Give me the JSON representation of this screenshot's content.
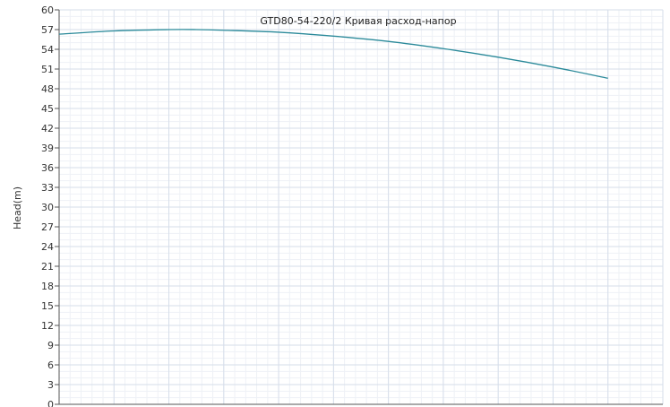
{
  "chart_data": {
    "type": "line",
    "title": "GTD80-54-220/2 Кривая расход-напор",
    "xlabel": "",
    "ylabel": "Head(m)",
    "ylim": [
      0,
      60
    ],
    "yticks": [
      0,
      3,
      6,
      9,
      12,
      15,
      18,
      21,
      24,
      27,
      30,
      33,
      36,
      39,
      42,
      45,
      48,
      51,
      54,
      57,
      60
    ],
    "xlim": [
      0,
      11
    ],
    "grid": true,
    "legend": "none",
    "series": [
      {
        "color": "#2b8a9a",
        "x": [
          0,
          1,
          2,
          2.5,
          3,
          4,
          5,
          6,
          7,
          8,
          9,
          10
        ],
        "y": [
          56.3,
          56.8,
          57.0,
          57.0,
          56.9,
          56.6,
          56.0,
          55.2,
          54.1,
          52.8,
          51.3,
          49.6
        ]
      }
    ]
  }
}
